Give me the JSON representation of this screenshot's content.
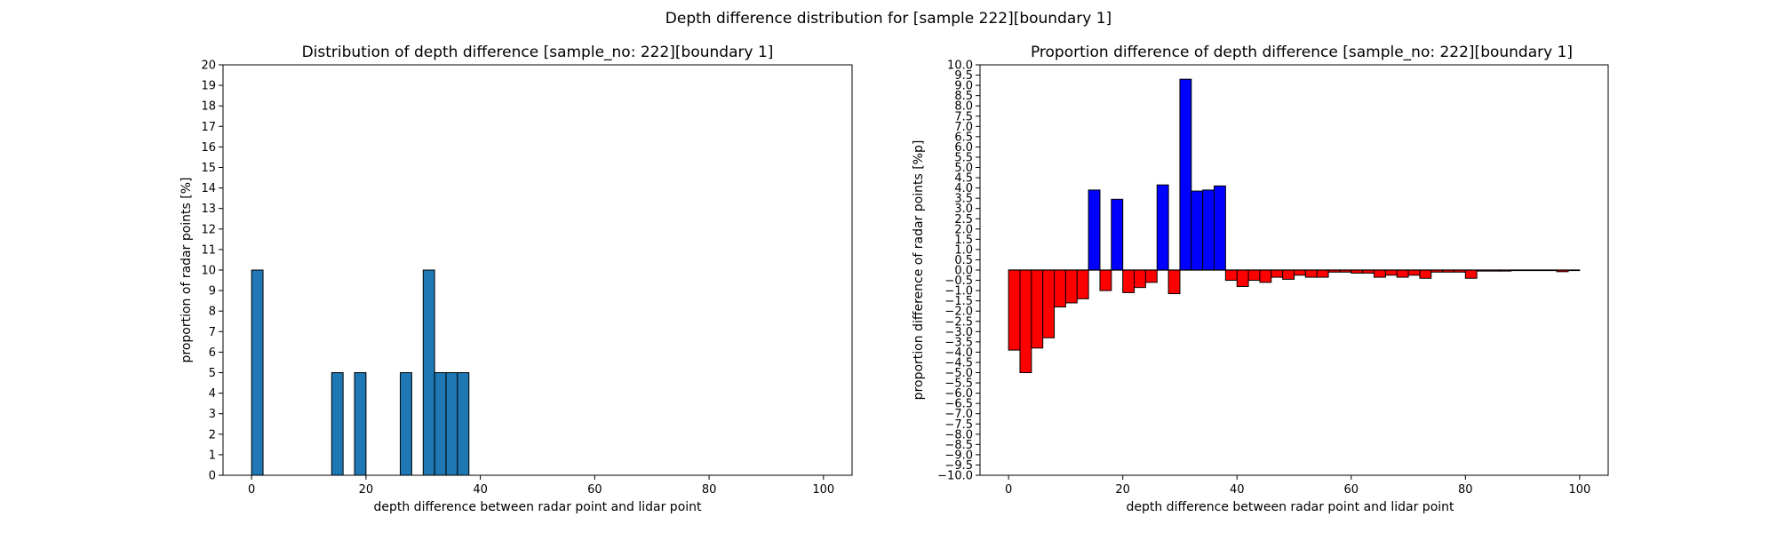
{
  "suptitle": "Depth difference distribution for [sample 222][boundary 1]",
  "chart_data": [
    {
      "type": "bar",
      "title": "Distribution of depth difference [sample_no: 222][boundary 1]",
      "xlabel": "depth difference between radar point and lidar point",
      "ylabel": "proportion of radar points [%]",
      "xlim": [
        -5,
        105
      ],
      "ylim": [
        0,
        20
      ],
      "xticks": [
        "0",
        "20",
        "40",
        "60",
        "80",
        "100"
      ],
      "yticks": [
        "0",
        "1",
        "2",
        "3",
        "4",
        "5",
        "6",
        "7",
        "8",
        "9",
        "10",
        "11",
        "12",
        "13",
        "14",
        "15",
        "16",
        "17",
        "18",
        "19",
        "20"
      ],
      "bin_width": 2,
      "bar_color": "#1f77b4",
      "bars": [
        {
          "x": 1,
          "value": 10
        },
        {
          "x": 15,
          "value": 5
        },
        {
          "x": 19,
          "value": 5
        },
        {
          "x": 27,
          "value": 5
        },
        {
          "x": 31,
          "value": 10
        },
        {
          "x": 33,
          "value": 5
        },
        {
          "x": 35,
          "value": 5
        },
        {
          "x": 37,
          "value": 5
        }
      ]
    },
    {
      "type": "bar",
      "title": "Proportion difference of depth difference [sample_no: 222][boundary 1]",
      "xlabel": "depth difference between radar point and lidar point",
      "ylabel": "proportion difference of radar points [%p]",
      "xlim": [
        -5,
        105
      ],
      "ylim": [
        -10,
        10
      ],
      "xticks": [
        "0",
        "20",
        "40",
        "60",
        "80",
        "100"
      ],
      "yticks": [
        "−10.0",
        "−9.5",
        "−9.0",
        "−8.5",
        "−8.0",
        "−7.5",
        "−7.0",
        "−6.5",
        "−6.0",
        "−5.5",
        "−5.0",
        "−4.5",
        "−4.0",
        "−3.5",
        "−3.0",
        "−2.5",
        "−2.0",
        "−1.5",
        "−1.0",
        "−0.5",
        "0.0",
        "0.5",
        "1.0",
        "1.5",
        "2.0",
        "2.5",
        "3.0",
        "3.5",
        "4.0",
        "4.5",
        "5.0",
        "5.5",
        "6.0",
        "6.5",
        "7.0",
        "7.5",
        "8.0",
        "8.5",
        "9.0",
        "9.5",
        "10.0"
      ],
      "bin_width": 2,
      "positive_color": "#0000ff",
      "negative_color": "#ff0000",
      "bars": [
        {
          "x": 1,
          "value": -3.9
        },
        {
          "x": 3,
          "value": -5.0
        },
        {
          "x": 5,
          "value": -3.8
        },
        {
          "x": 7,
          "value": -3.3
        },
        {
          "x": 9,
          "value": -1.8
        },
        {
          "x": 11,
          "value": -1.6
        },
        {
          "x": 13,
          "value": -1.4
        },
        {
          "x": 15,
          "value": 3.9
        },
        {
          "x": 17,
          "value": -1.0
        },
        {
          "x": 19,
          "value": 3.45
        },
        {
          "x": 21,
          "value": -1.1
        },
        {
          "x": 23,
          "value": -0.85
        },
        {
          "x": 25,
          "value": -0.6
        },
        {
          "x": 27,
          "value": 4.15
        },
        {
          "x": 29,
          "value": -1.15
        },
        {
          "x": 31,
          "value": 9.3
        },
        {
          "x": 33,
          "value": 3.85
        },
        {
          "x": 35,
          "value": 3.9
        },
        {
          "x": 37,
          "value": 4.1
        },
        {
          "x": 39,
          "value": -0.5
        },
        {
          "x": 41,
          "value": -0.8
        },
        {
          "x": 43,
          "value": -0.5
        },
        {
          "x": 45,
          "value": -0.6
        },
        {
          "x": 47,
          "value": -0.35
        },
        {
          "x": 49,
          "value": -0.45
        },
        {
          "x": 51,
          "value": -0.25
        },
        {
          "x": 53,
          "value": -0.35
        },
        {
          "x": 55,
          "value": -0.35
        },
        {
          "x": 57,
          "value": -0.1
        },
        {
          "x": 59,
          "value": -0.1
        },
        {
          "x": 61,
          "value": -0.15
        },
        {
          "x": 63,
          "value": -0.15
        },
        {
          "x": 65,
          "value": -0.35
        },
        {
          "x": 67,
          "value": -0.25
        },
        {
          "x": 69,
          "value": -0.35
        },
        {
          "x": 71,
          "value": -0.25
        },
        {
          "x": 73,
          "value": -0.4
        },
        {
          "x": 75,
          "value": -0.1
        },
        {
          "x": 77,
          "value": -0.1
        },
        {
          "x": 79,
          "value": -0.1
        },
        {
          "x": 81,
          "value": -0.4
        },
        {
          "x": 83,
          "value": -0.05
        },
        {
          "x": 85,
          "value": -0.05
        },
        {
          "x": 87,
          "value": -0.05
        },
        {
          "x": 89,
          "value": -0.02
        },
        {
          "x": 91,
          "value": -0.02
        },
        {
          "x": 93,
          "value": -0.02
        },
        {
          "x": 95,
          "value": -0.02
        },
        {
          "x": 97,
          "value": -0.08
        },
        {
          "x": 99,
          "value": -0.02
        }
      ]
    }
  ]
}
